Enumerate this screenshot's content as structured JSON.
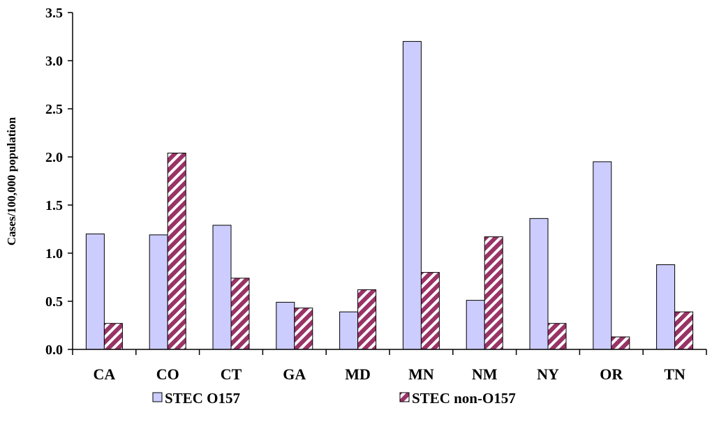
{
  "chart_data": {
    "type": "bar",
    "ylabel": "Cases/100,000 population",
    "xlabel": "",
    "ylim": [
      0,
      3.5
    ],
    "yticks": [
      "0.0",
      "0.5",
      "1.0",
      "1.5",
      "2.0",
      "2.5",
      "3.0",
      "3.5"
    ],
    "grid": false,
    "legend_position": "bottom",
    "categories": [
      "CA",
      "CO",
      "CT",
      "GA",
      "MD",
      "MN",
      "NM",
      "NY",
      "OR",
      "TN"
    ],
    "series": [
      {
        "name": "STEC O157",
        "pattern": "solid",
        "color": "#ccccff",
        "values": [
          1.2,
          1.19,
          1.29,
          0.49,
          0.39,
          3.2,
          0.51,
          1.36,
          1.95,
          0.88
        ]
      },
      {
        "name": "STEC non-O157",
        "pattern": "diagonal-stripes",
        "color": "#993366",
        "values": [
          0.27,
          2.04,
          0.74,
          0.43,
          0.62,
          0.8,
          1.17,
          0.27,
          0.13,
          0.39
        ]
      }
    ]
  }
}
